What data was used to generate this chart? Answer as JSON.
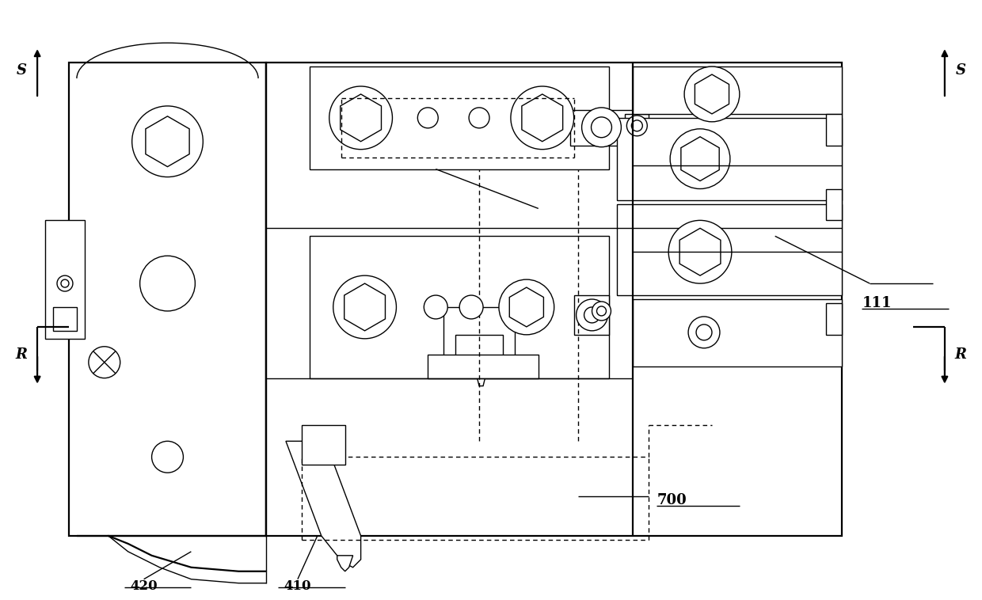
{
  "bg_color": "#ffffff",
  "line_color": "#000000",
  "labels": {
    "S_left": "S",
    "S_right": "S",
    "R_left": "R",
    "R_right": "R",
    "label_111": "111",
    "label_420": "420",
    "label_410": "410",
    "label_700": "700"
  },
  "fig_width": 12.4,
  "fig_height": 7.58
}
